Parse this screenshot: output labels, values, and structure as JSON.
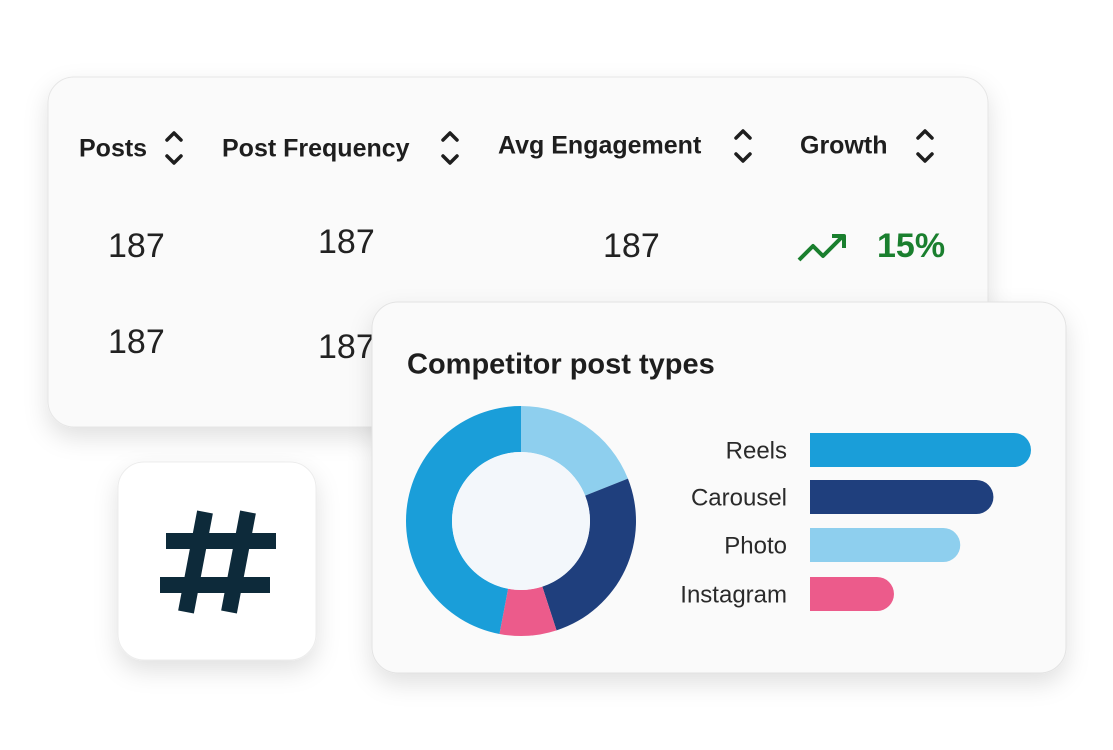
{
  "table": {
    "headers": [
      "Posts",
      "Post Frequency",
      "Avg Engagement",
      "Growth"
    ],
    "rows": [
      [
        "187",
        "187",
        "187",
        "15%"
      ],
      [
        "187",
        "187"
      ]
    ]
  },
  "chart_data": [
    {
      "type": "pie",
      "title": "Competitor post types",
      "values": [
        19,
        26,
        8,
        47
      ],
      "colors": [
        "#8ecfee",
        "#1f3f7d",
        "#ec5b8b",
        "#1a9ed9"
      ]
    },
    {
      "type": "bar",
      "categories": [
        "Reels",
        "Carousel",
        "Photo",
        "Instagram"
      ],
      "values": [
        100,
        83,
        68,
        38
      ],
      "colors": [
        "#1a9ed9",
        "#1f3f7d",
        "#8ecfee",
        "#ec5b8b"
      ],
      "xlim": [
        0,
        100
      ]
    }
  ]
}
